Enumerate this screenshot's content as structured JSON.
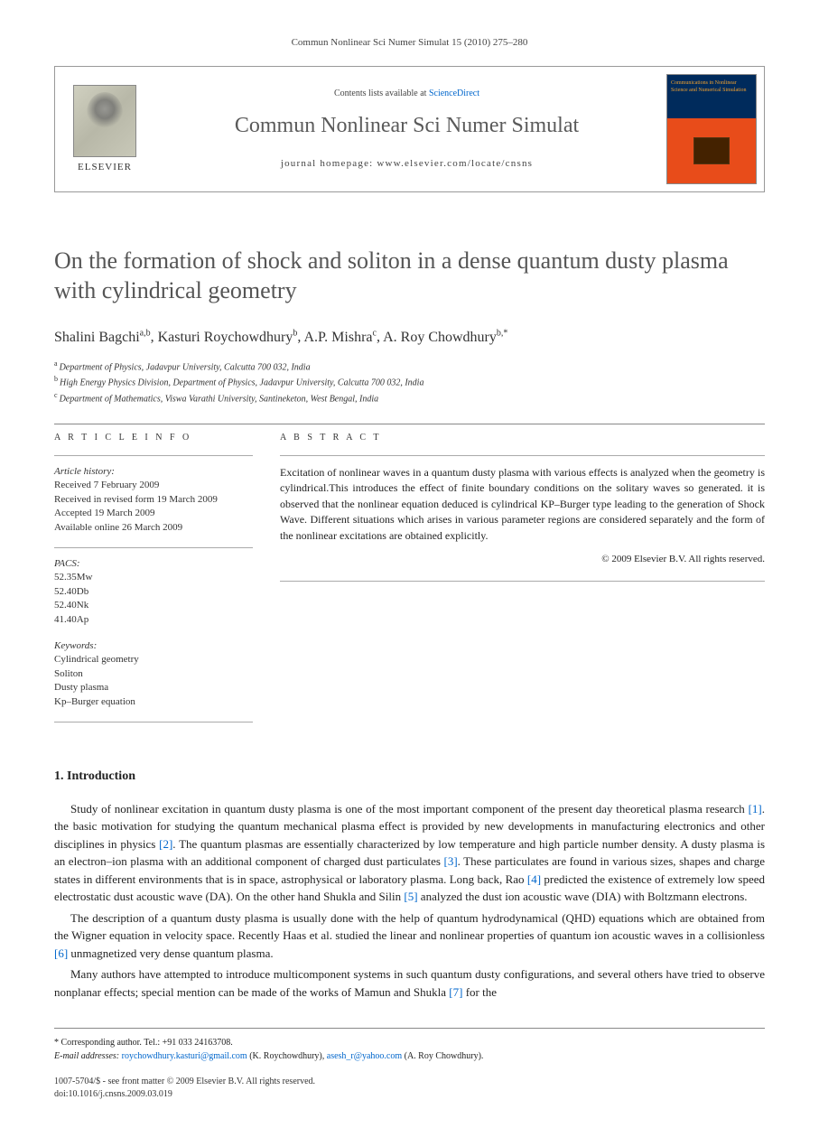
{
  "header": {
    "citation": "Commun Nonlinear Sci Numer Simulat 15 (2010) 275–280"
  },
  "masthead": {
    "publisher": "ELSEVIER",
    "contents_prefix": "Contents lists available at ",
    "contents_link": "ScienceDirect",
    "journal_name": "Commun Nonlinear Sci Numer Simulat",
    "homepage_label": "journal homepage: www.elsevier.com/locate/cnsns",
    "cover_text": "Communications in Nonlinear Science and Numerical Simulation"
  },
  "title": "On the formation of shock and soliton in a dense quantum dusty plasma with cylindrical geometry",
  "authors": [
    {
      "name": "Shalini Bagchi",
      "marks": "a,b"
    },
    {
      "name": "Kasturi Roychowdhury",
      "marks": "b"
    },
    {
      "name": "A.P. Mishra",
      "marks": "c"
    },
    {
      "name": "A. Roy Chowdhury",
      "marks": "b,*"
    }
  ],
  "affiliations": [
    {
      "mark": "a",
      "text": "Department of Physics, Jadavpur University, Calcutta 700 032, India"
    },
    {
      "mark": "b",
      "text": "High Energy Physics Division, Department of Physics, Jadavpur University, Calcutta 700 032, India"
    },
    {
      "mark": "c",
      "text": "Department of Mathematics, Viswa Varathi University, Santineketon, West Bengal, India"
    }
  ],
  "article_info": {
    "label": "A R T I C L E   I N F O",
    "history_label": "Article history:",
    "history": [
      "Received 7 February 2009",
      "Received in revised form 19 March 2009",
      "Accepted 19 March 2009",
      "Available online 26 March 2009"
    ],
    "pacs_label": "PACS:",
    "pacs": [
      "52.35Mw",
      "52.40Db",
      "52.40Nk",
      "41.40Ap"
    ],
    "keywords_label": "Keywords:",
    "keywords": [
      "Cylindrical geometry",
      "Soliton",
      "Dusty plasma",
      "Kp–Burger equation"
    ]
  },
  "abstract": {
    "label": "A B S T R A C T",
    "text": "Excitation of nonlinear waves in a quantum dusty plasma with various effects is analyzed when the geometry is cylindrical.This introduces the effect of finite boundary conditions on the solitary waves so generated. it is observed that the nonlinear equation deduced is cylindrical KP–Burger type leading to the generation of Shock Wave. Different situations which arises in various parameter regions are considered separately and the form of the nonlinear excitations are obtained explicitly.",
    "copyright": "© 2009 Elsevier B.V. All rights reserved."
  },
  "sections": {
    "intro_heading": "1. Introduction",
    "paragraphs": [
      {
        "parts": [
          {
            "t": "Study of nonlinear excitation in quantum dusty plasma is one of the most important component of the present day theoretical plasma research "
          },
          {
            "ref": "[1]"
          },
          {
            "t": ". the basic motivation for studying the quantum mechanical plasma effect is provided by new developments in manufacturing electronics and other disciplines in physics "
          },
          {
            "ref": "[2]"
          },
          {
            "t": ". The quantum plasmas are essentially characterized by low temperature and high particle number density. A dusty plasma is an electron–ion plasma with an additional component of charged dust particulates "
          },
          {
            "ref": "[3]"
          },
          {
            "t": ". These particulates are found in various sizes, shapes and charge states in different environments that is in space, astrophysical or laboratory plasma. Long back, Rao "
          },
          {
            "ref": "[4]"
          },
          {
            "t": " predicted the existence of extremely low speed electrostatic dust acoustic wave (DA). On the other hand Shukla and Silin "
          },
          {
            "ref": "[5]"
          },
          {
            "t": " analyzed the dust ion acoustic wave (DIA) with Boltzmann electrons."
          }
        ]
      },
      {
        "parts": [
          {
            "t": "The description of a quantum dusty plasma is usually done with the help of quantum hydrodynamical (QHD) equations which are obtained from the Wigner equation in velocity space. Recently Haas et al. studied the linear and nonlinear properties of quantum ion acoustic waves in a collisionless "
          },
          {
            "ref": "[6]"
          },
          {
            "t": " unmagnetized very dense quantum plasma."
          }
        ]
      },
      {
        "parts": [
          {
            "t": "Many authors have attempted to introduce multicomponent systems in such quantum dusty configurations, and several others have tried to observe nonplanar effects; special mention can be made of the works of Mamun and Shukla "
          },
          {
            "ref": "[7]"
          },
          {
            "t": " for the"
          }
        ]
      }
    ]
  },
  "footer": {
    "corr_label": "* Corresponding author. Tel.: +91 033 24163708.",
    "email_label": "E-mail addresses:",
    "emails": [
      {
        "addr": "roychowdhury.kasturi@gmail.com",
        "who": "(K. Roychowdhury)"
      },
      {
        "addr": "asesh_r@yahoo.com",
        "who": "(A. Roy Chowdhury)"
      }
    ],
    "issn_line": "1007-5704/$ - see front matter © 2009 Elsevier B.V. All rights reserved.",
    "doi_line": "doi:10.1016/j.cnsns.2009.03.019"
  }
}
